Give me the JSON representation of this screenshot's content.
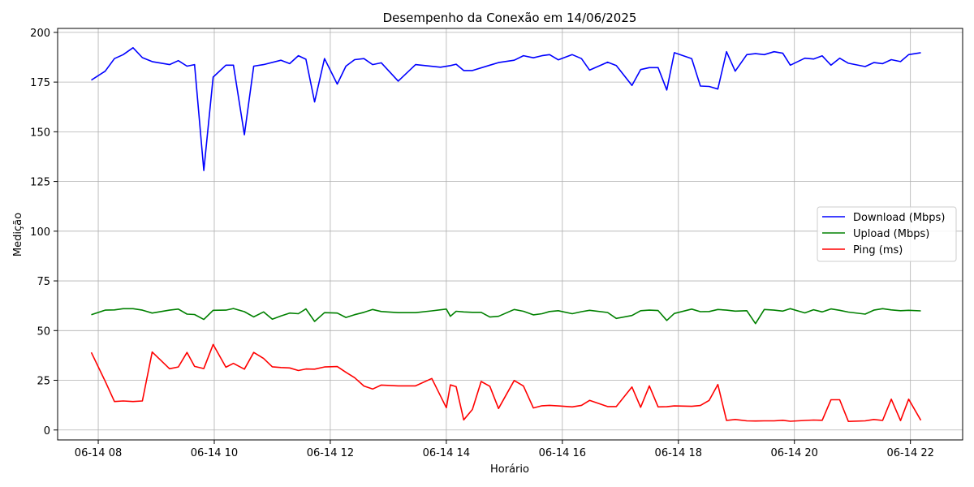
{
  "chart_data": {
    "type": "line",
    "title": "Desempenho da Conexão em 14/06/2025",
    "xlabel": "Horário",
    "ylabel": "Medição",
    "x_unit": "hours since 00:00 on 14/06/2025",
    "xlim": [
      7.3,
      22.9
    ],
    "ylim": [
      -5,
      202
    ],
    "xticks": [
      {
        "value": 8,
        "label": "06-14 08"
      },
      {
        "value": 10,
        "label": "06-14 10"
      },
      {
        "value": 12,
        "label": "06-14 12"
      },
      {
        "value": 14,
        "label": "06-14 14"
      },
      {
        "value": 16,
        "label": "06-14 16"
      },
      {
        "value": 18,
        "label": "06-14 18"
      },
      {
        "value": 20,
        "label": "06-14 20"
      },
      {
        "value": 22,
        "label": "06-14 22"
      }
    ],
    "yticks": [
      {
        "value": 0,
        "label": "0"
      },
      {
        "value": 25,
        "label": "25"
      },
      {
        "value": 50,
        "label": "50"
      },
      {
        "value": 75,
        "label": "75"
      },
      {
        "value": 100,
        "label": "100"
      },
      {
        "value": 125,
        "label": "125"
      },
      {
        "value": 150,
        "label": "150"
      },
      {
        "value": 175,
        "label": "175"
      },
      {
        "value": 200,
        "label": "200"
      }
    ],
    "grid": true,
    "legend_position": "center-right",
    "series": [
      {
        "name": "Download (Mbps)",
        "color": "#0000ff",
        "points": [
          [
            7.88,
            176
          ],
          [
            8.12,
            180.5
          ],
          [
            8.28,
            186.8
          ],
          [
            8.43,
            188.8
          ],
          [
            8.6,
            192.3
          ],
          [
            8.76,
            187.3
          ],
          [
            8.93,
            185.3
          ],
          [
            9.23,
            183.8
          ],
          [
            9.38,
            185.8
          ],
          [
            9.53,
            183
          ],
          [
            9.66,
            183.8
          ],
          [
            9.82,
            130.5
          ],
          [
            9.98,
            177.5
          ],
          [
            10.2,
            183.5
          ],
          [
            10.33,
            183.5
          ],
          [
            10.52,
            148.5
          ],
          [
            10.68,
            183
          ],
          [
            10.85,
            183.8
          ],
          [
            11.15,
            186
          ],
          [
            11.3,
            184.3
          ],
          [
            11.45,
            188.3
          ],
          [
            11.58,
            186.5
          ],
          [
            11.73,
            165
          ],
          [
            11.9,
            186.8
          ],
          [
            12.12,
            174
          ],
          [
            12.27,
            183
          ],
          [
            12.42,
            186.3
          ],
          [
            12.58,
            186.8
          ],
          [
            12.73,
            183.8
          ],
          [
            12.88,
            184.7
          ],
          [
            13.17,
            175.5
          ],
          [
            13.47,
            183.8
          ],
          [
            13.9,
            182.5
          ],
          [
            14.07,
            183.3
          ],
          [
            14.17,
            184
          ],
          [
            14.3,
            180.8
          ],
          [
            14.45,
            180.8
          ],
          [
            14.75,
            183.5
          ],
          [
            14.9,
            184.8
          ],
          [
            15.17,
            186
          ],
          [
            15.33,
            188.3
          ],
          [
            15.5,
            187.2
          ],
          [
            15.65,
            188.3
          ],
          [
            15.78,
            188.8
          ],
          [
            15.93,
            186.2
          ],
          [
            16.17,
            188.8
          ],
          [
            16.33,
            186.8
          ],
          [
            16.47,
            181
          ],
          [
            16.78,
            185
          ],
          [
            16.93,
            183.3
          ],
          [
            17.2,
            173.3
          ],
          [
            17.35,
            181.3
          ],
          [
            17.5,
            182.3
          ],
          [
            17.65,
            182.3
          ],
          [
            17.8,
            171
          ],
          [
            17.93,
            189.8
          ],
          [
            18.23,
            186.8
          ],
          [
            18.38,
            173
          ],
          [
            18.53,
            172.8
          ],
          [
            18.68,
            171.5
          ],
          [
            18.83,
            190.3
          ],
          [
            18.98,
            180.5
          ],
          [
            19.18,
            188.8
          ],
          [
            19.33,
            189.3
          ],
          [
            19.48,
            188.8
          ],
          [
            19.65,
            190.3
          ],
          [
            19.8,
            189.5
          ],
          [
            19.93,
            183.5
          ],
          [
            20.18,
            187
          ],
          [
            20.33,
            186.6
          ],
          [
            20.48,
            188.2
          ],
          [
            20.63,
            183.5
          ],
          [
            20.78,
            187
          ],
          [
            20.93,
            184.5
          ],
          [
            21.22,
            182.8
          ],
          [
            21.37,
            184.8
          ],
          [
            21.52,
            184.3
          ],
          [
            21.67,
            186.3
          ],
          [
            21.83,
            185.3
          ],
          [
            21.97,
            188.8
          ],
          [
            22.18,
            189.8
          ]
        ]
      },
      {
        "name": "Upload (Mbps)",
        "color": "#008000",
        "points": [
          [
            7.88,
            58
          ],
          [
            8.12,
            60.3
          ],
          [
            8.28,
            60.4
          ],
          [
            8.43,
            61
          ],
          [
            8.6,
            61
          ],
          [
            8.76,
            60.3
          ],
          [
            8.93,
            58.8
          ],
          [
            9.23,
            60.3
          ],
          [
            9.38,
            60.8
          ],
          [
            9.53,
            58.3
          ],
          [
            9.66,
            58.1
          ],
          [
            9.82,
            55.6
          ],
          [
            9.98,
            60.2
          ],
          [
            10.2,
            60.3
          ],
          [
            10.33,
            61.1
          ],
          [
            10.52,
            59.5
          ],
          [
            10.68,
            56.9
          ],
          [
            10.85,
            59.4
          ],
          [
            11.0,
            55.7
          ],
          [
            11.15,
            57.4
          ],
          [
            11.3,
            58.8
          ],
          [
            11.45,
            58.5
          ],
          [
            11.58,
            60.9
          ],
          [
            11.73,
            54.6
          ],
          [
            11.9,
            59
          ],
          [
            12.12,
            58.8
          ],
          [
            12.27,
            56.6
          ],
          [
            12.42,
            58
          ],
          [
            12.58,
            59.2
          ],
          [
            12.73,
            60.6
          ],
          [
            12.88,
            59.6
          ],
          [
            13.17,
            59
          ],
          [
            13.47,
            59
          ],
          [
            13.75,
            59.9
          ],
          [
            14.0,
            60.8
          ],
          [
            14.07,
            57.2
          ],
          [
            14.17,
            59.7
          ],
          [
            14.3,
            59.4
          ],
          [
            14.45,
            59.2
          ],
          [
            14.6,
            59.2
          ],
          [
            14.75,
            56.8
          ],
          [
            14.9,
            57.2
          ],
          [
            15.17,
            60.6
          ],
          [
            15.33,
            59.7
          ],
          [
            15.5,
            57.9
          ],
          [
            15.65,
            58.5
          ],
          [
            15.78,
            59.6
          ],
          [
            15.93,
            60
          ],
          [
            16.17,
            58.5
          ],
          [
            16.33,
            59.5
          ],
          [
            16.47,
            60.2
          ],
          [
            16.78,
            59.1
          ],
          [
            16.93,
            56.1
          ],
          [
            17.2,
            57.6
          ],
          [
            17.35,
            60
          ],
          [
            17.5,
            60.3
          ],
          [
            17.65,
            60.1
          ],
          [
            17.8,
            55.1
          ],
          [
            17.93,
            58.6
          ],
          [
            18.23,
            60.8
          ],
          [
            18.38,
            59.5
          ],
          [
            18.53,
            59.6
          ],
          [
            18.68,
            60.6
          ],
          [
            18.83,
            60.3
          ],
          [
            18.98,
            59.8
          ],
          [
            19.18,
            60
          ],
          [
            19.33,
            53.5
          ],
          [
            19.48,
            60.6
          ],
          [
            19.65,
            60.3
          ],
          [
            19.8,
            59.8
          ],
          [
            19.93,
            61
          ],
          [
            20.18,
            58.9
          ],
          [
            20.33,
            60.5
          ],
          [
            20.48,
            59.4
          ],
          [
            20.63,
            60.9
          ],
          [
            20.78,
            60.2
          ],
          [
            20.93,
            59.3
          ],
          [
            21.22,
            58.3
          ],
          [
            21.37,
            60.3
          ],
          [
            21.52,
            61
          ],
          [
            21.67,
            60.4
          ],
          [
            21.83,
            60
          ],
          [
            21.97,
            60.2
          ],
          [
            22.18,
            59.9
          ]
        ]
      },
      {
        "name": "Ping (ms)",
        "color": "#ff0000",
        "points": [
          [
            7.88,
            39
          ],
          [
            8.12,
            24.5
          ],
          [
            8.28,
            14.3
          ],
          [
            8.43,
            14.6
          ],
          [
            8.6,
            14.3
          ],
          [
            8.76,
            14.6
          ],
          [
            8.93,
            39.2
          ],
          [
            9.23,
            30.8
          ],
          [
            9.38,
            31.7
          ],
          [
            9.53,
            39
          ],
          [
            9.66,
            32
          ],
          [
            9.82,
            30.9
          ],
          [
            9.98,
            43
          ],
          [
            10.2,
            31.6
          ],
          [
            10.33,
            33.5
          ],
          [
            10.52,
            30.6
          ],
          [
            10.68,
            39
          ],
          [
            10.85,
            36
          ],
          [
            11.0,
            31.8
          ],
          [
            11.15,
            31.4
          ],
          [
            11.3,
            31.2
          ],
          [
            11.45,
            29.9
          ],
          [
            11.58,
            30.7
          ],
          [
            11.73,
            30.6
          ],
          [
            11.9,
            31.7
          ],
          [
            12.12,
            31.9
          ],
          [
            12.27,
            29
          ],
          [
            12.42,
            26.3
          ],
          [
            12.58,
            22.1
          ],
          [
            12.73,
            20.6
          ],
          [
            12.88,
            22.6
          ],
          [
            13.17,
            22.2
          ],
          [
            13.47,
            22.2
          ],
          [
            13.75,
            25.9
          ],
          [
            14.0,
            11.2
          ],
          [
            14.07,
            22.7
          ],
          [
            14.17,
            21.8
          ],
          [
            14.3,
            5.1
          ],
          [
            14.45,
            10.3
          ],
          [
            14.6,
            24.4
          ],
          [
            14.75,
            22
          ],
          [
            14.9,
            10.8
          ],
          [
            15.17,
            24.9
          ],
          [
            15.33,
            22.1
          ],
          [
            15.5,
            11.1
          ],
          [
            15.65,
            12.2
          ],
          [
            15.78,
            12.4
          ],
          [
            15.93,
            12.1
          ],
          [
            16.17,
            11.6
          ],
          [
            16.33,
            12.4
          ],
          [
            16.47,
            14.9
          ],
          [
            16.78,
            11.8
          ],
          [
            16.93,
            11.8
          ],
          [
            17.2,
            21.6
          ],
          [
            17.35,
            11.4
          ],
          [
            17.5,
            22.2
          ],
          [
            17.65,
            11.6
          ],
          [
            17.8,
            11.7
          ],
          [
            17.93,
            12.1
          ],
          [
            18.23,
            11.9
          ],
          [
            18.38,
            12.3
          ],
          [
            18.53,
            14.9
          ],
          [
            18.68,
            22.9
          ],
          [
            18.83,
            4.8
          ],
          [
            18.98,
            5.3
          ],
          [
            19.18,
            4.6
          ],
          [
            19.33,
            4.5
          ],
          [
            19.48,
            4.6
          ],
          [
            19.65,
            4.6
          ],
          [
            19.8,
            4.9
          ],
          [
            19.93,
            4.4
          ],
          [
            20.18,
            4.8
          ],
          [
            20.33,
            5
          ],
          [
            20.48,
            4.9
          ],
          [
            20.63,
            15.2
          ],
          [
            20.78,
            15.2
          ],
          [
            20.93,
            4.3
          ],
          [
            21.22,
            4.6
          ],
          [
            21.37,
            5.3
          ],
          [
            21.52,
            4.8
          ],
          [
            21.67,
            15.5
          ],
          [
            21.83,
            4.7
          ],
          [
            21.97,
            15.5
          ],
          [
            22.18,
            4.9
          ]
        ]
      }
    ]
  }
}
